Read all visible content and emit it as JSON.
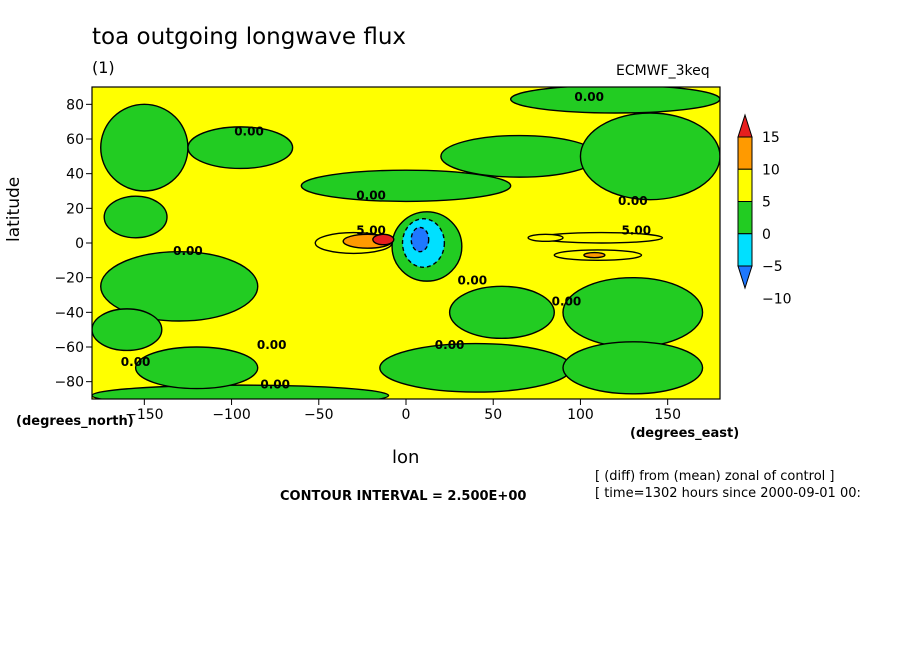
{
  "header": {
    "title": "toa outgoing longwave flux",
    "panel_label": "(1)",
    "model_label": "ECMWF_3keq"
  },
  "footer": {
    "contour_interval": "CONTOUR INTERVAL = 2.500E+00",
    "note_line1": "[ (diff) from (mean) zonal of control ]",
    "note_line2": "[ time=1302 hours since 2000-09-01 00:"
  },
  "chart_data": {
    "type": "heatmap",
    "title": "toa outgoing longwave flux",
    "xlabel": "lon",
    "ylabel": "latitude",
    "x_unit": "(degrees_east)",
    "y_unit": "(degrees_north)",
    "xlim": [
      -180,
      180
    ],
    "ylim": [
      -90,
      90
    ],
    "x_ticks": [
      -150,
      -100,
      -50,
      0,
      50,
      100,
      150
    ],
    "y_ticks": [
      -80,
      -60,
      -40,
      -20,
      0,
      20,
      40,
      60,
      80
    ],
    "grid": false,
    "contour_interval": 2.5,
    "colorbar": {
      "placement": "right",
      "levels": [
        -10,
        -5,
        0,
        5,
        10,
        15
      ],
      "colors": [
        "#1e78ff",
        "#00e0ff",
        "#22cc22",
        "#ffff00",
        "#ff9a00",
        "#e61e1e"
      ]
    },
    "contour_labels": [
      {
        "text": "0.00",
        "lon": -90,
        "lat": 64
      },
      {
        "text": "0.00",
        "lon": 105,
        "lat": 84
      },
      {
        "text": "0.00",
        "lon": -20,
        "lat": 27
      },
      {
        "text": "0.00",
        "lon": 130,
        "lat": 24
      },
      {
        "text": "5.00",
        "lon": -20,
        "lat": 7
      },
      {
        "text": "5.00",
        "lon": 132,
        "lat": 7
      },
      {
        "text": "0.00",
        "lon": -125,
        "lat": -5
      },
      {
        "text": "0.00",
        "lon": 38,
        "lat": -22
      },
      {
        "text": "0.00",
        "lon": 92,
        "lat": -34
      },
      {
        "text": "0.00",
        "lon": 25,
        "lat": -59
      },
      {
        "text": "0.00",
        "lon": -77,
        "lat": -59
      },
      {
        "text": "0.00",
        "lon": -155,
        "lat": -69
      },
      {
        "text": "0.00",
        "lon": -75,
        "lat": -82
      }
    ],
    "regions": [
      {
        "value": -2.5,
        "lon": -150,
        "lat": 55,
        "rlon": 25,
        "rlat": 25
      },
      {
        "value": -2.5,
        "lon": -95,
        "lat": 55,
        "rlon": 30,
        "rlat": 12
      },
      {
        "value": -2.5,
        "lon": -155,
        "lat": 15,
        "rlon": 18,
        "rlat": 12
      },
      {
        "value": -2.5,
        "lon": -130,
        "lat": -25,
        "rlon": 45,
        "rlat": 20
      },
      {
        "value": -2.5,
        "lon": -160,
        "lat": -50,
        "rlon": 20,
        "rlat": 12
      },
      {
        "value": -2.5,
        "lon": -95,
        "lat": -88,
        "rlon": 85,
        "rlat": 6
      },
      {
        "value": -2.5,
        "lon": -120,
        "lat": -72,
        "rlon": 35,
        "rlat": 12
      },
      {
        "value": -2.5,
        "lon": 0,
        "lat": 33,
        "rlon": 60,
        "rlat": 9
      },
      {
        "value": -2.5,
        "lon": 65,
        "lat": 50,
        "rlon": 45,
        "rlat": 12
      },
      {
        "value": -2.5,
        "lon": 140,
        "lat": 50,
        "rlon": 40,
        "rlat": 25
      },
      {
        "value": -2.5,
        "lon": 120,
        "lat": 83,
        "rlon": 60,
        "rlat": 8
      },
      {
        "value": -2.5,
        "lon": 55,
        "lat": -40,
        "rlon": 30,
        "rlat": 15
      },
      {
        "value": -2.5,
        "lon": 130,
        "lat": -40,
        "rlon": 40,
        "rlat": 20
      },
      {
        "value": -2.5,
        "lon": 40,
        "lat": -72,
        "rlon": 55,
        "rlat": 14
      },
      {
        "value": -2.5,
        "lon": 130,
        "lat": -72,
        "rlon": 40,
        "rlat": 15
      },
      {
        "value": -2.5,
        "lon": 12,
        "lat": -2,
        "rlon": 20,
        "rlat": 20
      },
      {
        "value": -7.5,
        "lon": 10,
        "lat": 0,
        "rlon": 12,
        "rlat": 14
      },
      {
        "value": -12,
        "lon": 8,
        "lat": 2,
        "rlon": 5,
        "rlat": 7
      },
      {
        "value": 2.5,
        "lon": -30,
        "lat": 0,
        "rlon": 22,
        "rlat": 6
      },
      {
        "value": 7.5,
        "lon": -22,
        "lat": 1,
        "rlon": 14,
        "rlat": 4
      },
      {
        "value": 12,
        "lon": -13,
        "lat": 2,
        "rlon": 6,
        "rlat": 3
      },
      {
        "value": 2.5,
        "lon": 112,
        "lat": 3,
        "rlon": 35,
        "rlat": 3
      },
      {
        "value": 2.5,
        "lon": 80,
        "lat": 3,
        "rlon": 10,
        "rlat": 2
      },
      {
        "value": 2.5,
        "lon": 110,
        "lat": -7,
        "rlon": 25,
        "rlat": 3
      },
      {
        "value": 7.5,
        "lon": 108,
        "lat": -7,
        "rlon": 6,
        "rlat": 1.5
      }
    ]
  }
}
